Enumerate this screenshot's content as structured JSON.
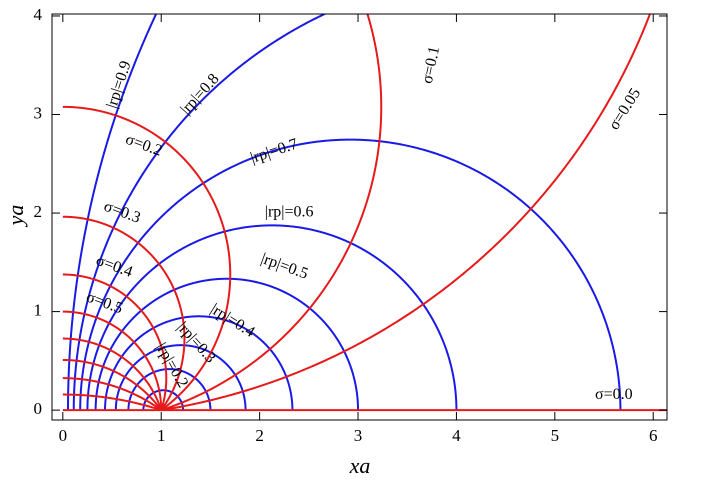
{
  "chart_data": {
    "type": "contour",
    "xlabel": "xa",
    "ylabel": "ya",
    "xlim": [
      -0.11,
      6.14
    ],
    "ylim": [
      -0.1,
      4.02
    ],
    "xticks": [
      0,
      1,
      2,
      3,
      4,
      5,
      6
    ],
    "yticks": [
      0,
      1,
      2,
      3,
      4
    ],
    "r_curves": {
      "color": "#1a1ae6",
      "levels": [
        0.1,
        0.2,
        0.3,
        0.4,
        0.5,
        0.6,
        0.7,
        0.8,
        0.9
      ],
      "labels": [
        null,
        "|rp|=0.2",
        "|rp|=0.3",
        "|rp|=0.4",
        "|rp|=0.5",
        "|rp|=0.6",
        "|rp|=0.7",
        "|rp|=0.8",
        "|rp|=0.9"
      ]
    },
    "sigma_curves": {
      "color": "#e61a1a",
      "levels": [
        0,
        0.05,
        0.1,
        0.2,
        0.3,
        0.4,
        0.5,
        0.6,
        0.7,
        0.8,
        0.9
      ],
      "labels": [
        "σ=0.0",
        "σ=0.05",
        "σ=0.1",
        "σ=0.2",
        "σ=0.3",
        "σ=0.4",
        "σ=0.5",
        null,
        null,
        null,
        null
      ]
    }
  }
}
